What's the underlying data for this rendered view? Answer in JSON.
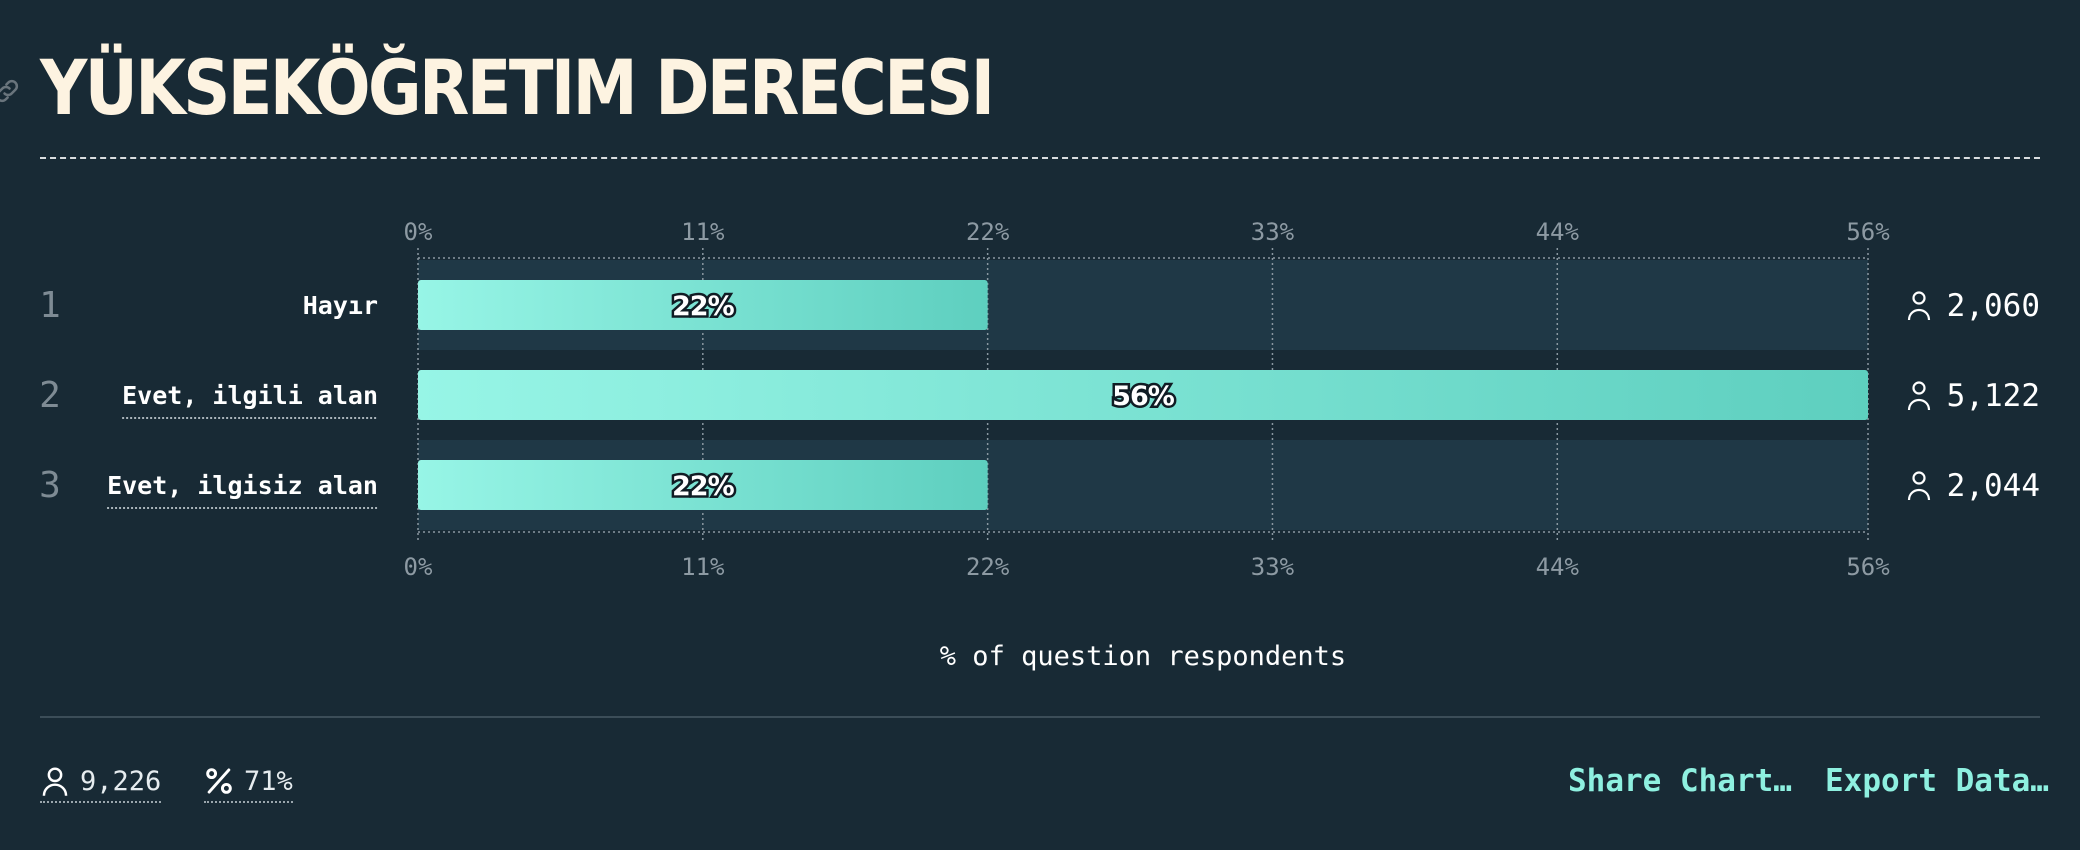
{
  "title": "YÜKSEKÖĞRETIM DERECESI",
  "chart_data": {
    "type": "bar",
    "orientation": "horizontal",
    "categories": [
      "Hayır",
      "Evet, ilgili alan",
      "Evet, ilgisiz alan"
    ],
    "ranks": [
      "1",
      "2",
      "3"
    ],
    "values": [
      22,
      56,
      22
    ],
    "data_labels": [
      "22%",
      "56%",
      "22%"
    ],
    "counts": [
      "2,060",
      "5,122",
      "2,044"
    ],
    "xlabel": "% of question respondents",
    "xlim": [
      0,
      56
    ],
    "xticks": [
      0,
      11,
      22,
      33,
      44,
      56
    ],
    "xtick_labels": [
      "0%",
      "11%",
      "22%",
      "33%",
      "44%",
      "56%"
    ],
    "grid": true,
    "colors": {
      "bar_start": "#97f5e6",
      "bar_end": "#5ecfbf",
      "track": "#1f3846"
    }
  },
  "footer": {
    "respondents": "9,226",
    "response_rate": "71%",
    "share_label": "Share Chart…",
    "export_label": "Export Data…"
  }
}
